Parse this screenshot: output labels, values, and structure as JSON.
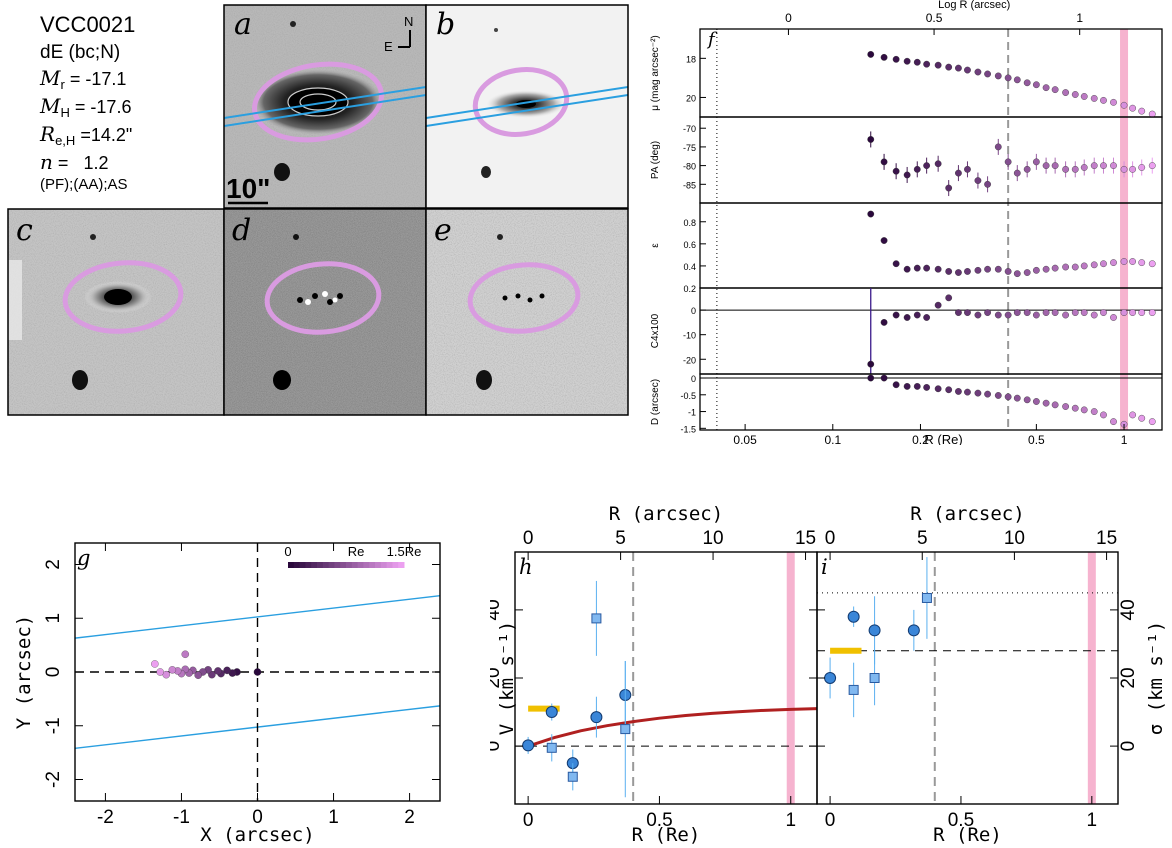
{
  "galaxy": {
    "name": "VCC0021",
    "type": "dE (bc;N)",
    "props": [
      {
        "sym": "M",
        "sub": "r",
        "eq": "=",
        "val": "-17.1"
      },
      {
        "sym": "M",
        "sub": "H",
        "eq": "=",
        "val": "-17.6"
      },
      {
        "sym": "R",
        "sub": "e,H",
        "eq": "=",
        "val": "14.2\""
      },
      {
        "sym": "n",
        "sub": "",
        "eq": "=",
        "val": "1.2"
      }
    ],
    "classes": "(PF);(AA);AS"
  },
  "image_panels": [
    {
      "label": "a",
      "scale_label": "10\"",
      "compass_n": "N",
      "compass_e": "E"
    },
    {
      "label": "b"
    },
    {
      "label": "c"
    },
    {
      "label": "d"
    },
    {
      "label": "e"
    }
  ],
  "colors": {
    "ellipse": "#d99be0",
    "slit": "#2a9fe0",
    "re_band": "#f6b3cf",
    "curve": "#b02020",
    "marker": "#3a86d8",
    "yellow": "#f0c000"
  },
  "chart_data": [
    {
      "panel": "f",
      "type": "scatter",
      "xlabel": "R (Re)",
      "x_top_label": "Log R (arcsec)",
      "x_log": true,
      "xlim": [
        0.035,
        1.35
      ],
      "xticks": [
        "0.05",
        "0.1",
        "0.2",
        "0.5",
        "1"
      ],
      "top_ticks": [
        "0",
        "0.5",
        "1"
      ],
      "vlines": {
        "dotted": 0.04,
        "dashed": 0.4,
        "band": 1.0
      },
      "x": [
        0.135,
        0.15,
        0.165,
        0.18,
        0.195,
        0.21,
        0.23,
        0.25,
        0.27,
        0.29,
        0.315,
        0.34,
        0.37,
        0.4,
        0.43,
        0.465,
        0.5,
        0.54,
        0.58,
        0.63,
        0.68,
        0.73,
        0.79,
        0.85,
        0.92,
        1.0,
        1.07,
        1.15,
        1.25
      ],
      "subpanels": [
        {
          "ylabel": "μ (mag arcsec⁻²)",
          "yticks": [
            "18",
            "20"
          ],
          "ylim": [
            21,
            16.5
          ],
          "y": [
            17.8,
            17.95,
            18.05,
            18.15,
            18.2,
            18.3,
            18.35,
            18.45,
            18.5,
            18.6,
            18.7,
            18.8,
            18.9,
            19.0,
            19.1,
            19.25,
            19.35,
            19.5,
            19.6,
            19.75,
            19.85,
            19.95,
            20.05,
            20.15,
            20.25,
            20.4,
            20.55,
            20.7,
            20.85
          ]
        },
        {
          "ylabel": "PA (deg)",
          "yticks": [
            "-70",
            "-75",
            "-80",
            "-85"
          ],
          "ylim": [
            -90,
            -67
          ],
          "y": [
            -73,
            -79,
            -81.5,
            -82.5,
            -81,
            -80,
            -79.5,
            -86,
            -82,
            -81,
            -84,
            -85,
            -75,
            -79,
            -82,
            -81,
            -79,
            -80,
            -80,
            -81,
            -81,
            -80.5,
            -80,
            -80,
            -80,
            -81,
            -81,
            -80.5,
            -80
          ]
        },
        {
          "ylabel": "ε",
          "yticks": [
            "0.8",
            "0.6",
            "0.4",
            "0.2"
          ],
          "ylim": [
            0.2,
            0.97
          ],
          "y": [
            0.87,
            0.63,
            0.42,
            0.37,
            0.38,
            0.38,
            0.37,
            0.35,
            0.34,
            0.35,
            0.36,
            0.37,
            0.37,
            0.35,
            0.33,
            0.34,
            0.36,
            0.37,
            0.38,
            0.39,
            0.39,
            0.4,
            0.41,
            0.42,
            0.43,
            0.44,
            0.44,
            0.43,
            0.42
          ]
        },
        {
          "ylabel": "C4x100",
          "yticks": [
            "0",
            "-10",
            "-20"
          ],
          "ylim": [
            -26,
            9
          ],
          "y": [
            -22,
            -5,
            -2,
            -3,
            -2,
            -3,
            2,
            5,
            -1,
            -1,
            -2,
            -1,
            -2,
            -2,
            -1,
            -1,
            -2,
            -1,
            -1,
            -2,
            -1,
            -1,
            -2,
            -1,
            -3,
            -1,
            -1,
            -1,
            -1
          ]
        },
        {
          "ylabel": "D (arcsec)",
          "yticks": [
            "0",
            "-0.5",
            "-1",
            "-1.5"
          ],
          "ylim": [
            -1.55,
            0.12
          ],
          "y": [
            0,
            0,
            -0.2,
            -0.25,
            -0.25,
            -0.28,
            -0.32,
            -0.35,
            -0.4,
            -0.42,
            -0.45,
            -0.48,
            -0.52,
            -0.56,
            -0.6,
            -0.65,
            -0.7,
            -0.75,
            -0.8,
            -0.85,
            -0.9,
            -0.95,
            -1.0,
            -1.1,
            -1.3,
            -1.38,
            -1.1,
            -1.2,
            -1.3
          ]
        }
      ]
    },
    {
      "panel": "g",
      "type": "scatter",
      "xlabel": "X (arcsec)",
      "ylabel": "Y (arcsec)",
      "xlim": [
        -2.4,
        2.4
      ],
      "ylim": [
        -2.4,
        2.4
      ],
      "xticks": [
        "-2",
        "-1",
        "0",
        "1",
        "2"
      ],
      "yticks": [
        "-2",
        "-1",
        "0",
        "1",
        "2"
      ],
      "colorbar": {
        "min_label": "0",
        "mid_label": "Re",
        "max_label": "1.5Re"
      },
      "slit_lines": [
        {
          "y_left": 0.63,
          "y_right": 1.42
        },
        {
          "y_left": -1.42,
          "y_right": -0.63
        }
      ],
      "x": [
        0.0,
        -0.27,
        -0.33,
        -0.4,
        -0.48,
        -0.52,
        -0.6,
        -0.65,
        -0.72,
        -0.78,
        -0.85,
        -0.9,
        -0.95,
        -1.0,
        -1.05,
        -1.12,
        -1.2,
        -1.28,
        -1.35,
        -0.95
      ],
      "y": [
        0.0,
        0.0,
        -0.02,
        0.03,
        -0.03,
        0.02,
        -0.05,
        0.04,
        0.0,
        -0.06,
        0.03,
        -0.02,
        0.05,
        -0.03,
        0.02,
        0.04,
        -0.05,
        0.0,
        0.15,
        0.33
      ]
    },
    {
      "panel": "h",
      "type": "scatter",
      "xlabel": "R (Re)",
      "ylabel": "V (km s⁻¹)",
      "top_label": "R (arcsec)",
      "xlim": [
        -0.05,
        1.1
      ],
      "ylim": [
        -17,
        57
      ],
      "xticks": [
        "0",
        "0.5",
        "1"
      ],
      "yticks": [
        "0",
        "20",
        "40"
      ],
      "top_ticks": [
        "0",
        "5",
        "10",
        "15"
      ],
      "dashed_v": 0.4,
      "band": 1.0,
      "yellow_seg": {
        "x0": 0.0,
        "x1": 0.12,
        "y": 11
      },
      "series": [
        {
          "marker": "circle",
          "x": [
            0.0,
            0.09,
            0.17,
            0.26,
            0.37
          ],
          "y": [
            0.2,
            10,
            -5,
            8.5,
            15
          ],
          "err": [
            2.5,
            2.5,
            4,
            6,
            10
          ]
        },
        {
          "marker": "square",
          "x": [
            0.09,
            0.17,
            0.26,
            0.37
          ],
          "y": [
            -0.5,
            -9,
            37.5,
            5
          ],
          "err": [
            4,
            4,
            11,
            20
          ]
        }
      ],
      "curve": {
        "x": [
          0.02,
          0.1,
          0.2,
          0.3,
          0.4,
          0.5,
          0.6,
          0.7,
          0.8,
          0.9,
          1.0,
          1.1
        ],
        "y": [
          0.5,
          2.5,
          4.5,
          6,
          7.2,
          8.2,
          9,
          9.6,
          10.1,
          10.5,
          10.8,
          11
        ]
      }
    },
    {
      "panel": "i",
      "type": "scatter",
      "xlabel": "R (Re)",
      "ylabel": "σ (km s⁻¹)",
      "top_label": "R (arcsec)",
      "xlim": [
        -0.05,
        1.1
      ],
      "ylim": [
        -17,
        57
      ],
      "xticks": [
        "0",
        "0.5",
        "1"
      ],
      "yticks": [
        "0",
        "20",
        "40"
      ],
      "top_ticks": [
        "0",
        "5",
        "10",
        "15"
      ],
      "dashed_v": 0.4,
      "band": 1.0,
      "hline_dashed": 28,
      "hline_dotted": 45,
      "yellow_seg": {
        "x0": 0.0,
        "x1": 0.12,
        "y": 28
      },
      "series": [
        {
          "marker": "circle",
          "x": [
            0.0,
            0.09,
            0.17,
            0.32
          ],
          "y": [
            20,
            38,
            34,
            34
          ],
          "err": [
            6,
            3,
            10,
            6
          ]
        },
        {
          "marker": "square",
          "x": [
            0.09,
            0.17,
            0.37
          ],
          "y": [
            16.5,
            20,
            43.5
          ],
          "err": [
            8,
            8,
            12
          ]
        }
      ]
    }
  ]
}
